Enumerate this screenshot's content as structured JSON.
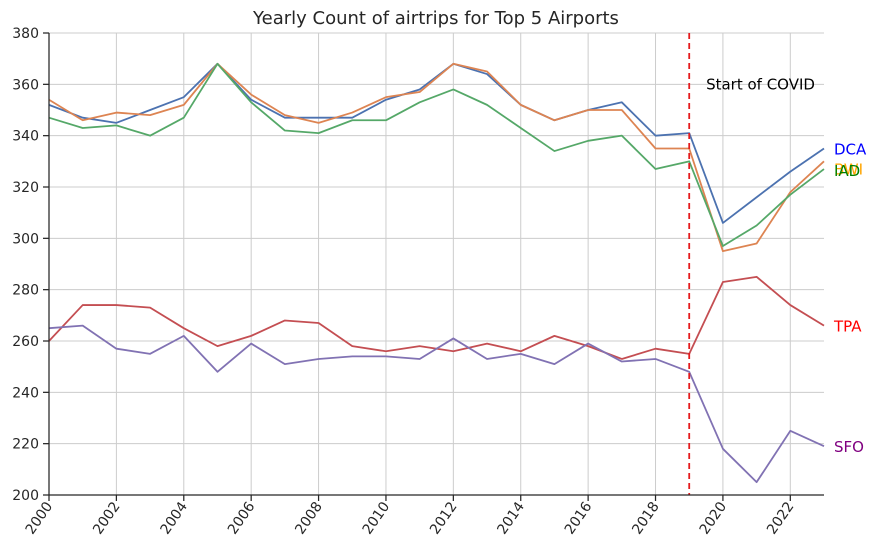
{
  "chart_data": {
    "type": "line",
    "title": "Yearly Count of airtrips for Top 5 Airports",
    "xlabel": "",
    "ylabel": "",
    "xlim": [
      2000,
      2023
    ],
    "ylim": [
      200,
      380
    ],
    "x_ticks": [
      2000,
      2002,
      2004,
      2006,
      2008,
      2010,
      2012,
      2014,
      2016,
      2018,
      2020,
      2022
    ],
    "y_ticks": [
      200,
      220,
      240,
      260,
      280,
      300,
      320,
      340,
      360,
      380
    ],
    "grid": true,
    "x": [
      2000,
      2001,
      2002,
      2003,
      2004,
      2005,
      2006,
      2007,
      2008,
      2009,
      2010,
      2011,
      2012,
      2013,
      2014,
      2015,
      2016,
      2017,
      2018,
      2019,
      2020,
      2021,
      2022,
      2023
    ],
    "series": [
      {
        "name": "DCA",
        "color": "#4c72b0",
        "label_color": "#0000ff",
        "values": [
          352,
          347,
          345,
          350,
          355,
          368,
          354,
          347,
          347,
          347,
          354,
          358,
          368,
          364,
          352,
          346,
          350,
          353,
          340,
          341,
          306,
          316,
          326,
          335
        ]
      },
      {
        "name": "BWI",
        "color": "#dd8452",
        "label_color": "#ffa500",
        "values": [
          354,
          346,
          349,
          348,
          352,
          368,
          356,
          348,
          345,
          349,
          355,
          357,
          368,
          365,
          352,
          346,
          350,
          350,
          335,
          335,
          295,
          298,
          318,
          330
        ]
      },
      {
        "name": "IAD",
        "color": "#55a868",
        "label_color": "#008000",
        "values": [
          347,
          343,
          344,
          340,
          347,
          368,
          353,
          342,
          341,
          346,
          346,
          353,
          358,
          352,
          343,
          334,
          338,
          340,
          327,
          330,
          297,
          305,
          317,
          327
        ]
      },
      {
        "name": "TPA",
        "color": "#c44e52",
        "label_color": "#ff0000",
        "values": [
          260,
          274,
          274,
          273,
          265,
          258,
          262,
          268,
          267,
          258,
          256,
          258,
          256,
          259,
          256,
          262,
          258,
          253,
          257,
          255,
          283,
          285,
          274,
          266
        ]
      },
      {
        "name": "SFO",
        "color": "#8172b3",
        "label_color": "#800080",
        "values": [
          265,
          266,
          257,
          255,
          262,
          248,
          259,
          251,
          253,
          254,
          254,
          253,
          261,
          253,
          255,
          251,
          259,
          252,
          253,
          248,
          218,
          205,
          225,
          219
        ]
      }
    ],
    "annotations": [
      {
        "type": "vline",
        "x": 2019,
        "color": "#e41a1c",
        "style": "dashed"
      },
      {
        "type": "text",
        "text": "Start of COVID",
        "x": 2019.5,
        "y": 360
      }
    ]
  }
}
